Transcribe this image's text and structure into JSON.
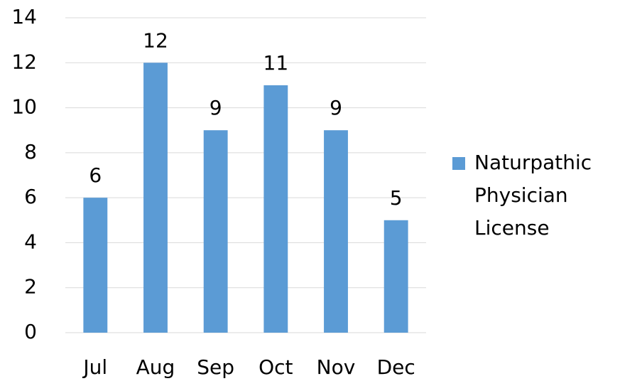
{
  "chart_data": {
    "type": "bar",
    "categories": [
      "Jul",
      "Aug",
      "Sep",
      "Oct",
      "Nov",
      "Dec"
    ],
    "series": [
      {
        "name": "Naturpathic Physician License",
        "color": "#5b9bd5",
        "values": [
          6,
          12,
          9,
          11,
          9,
          5
        ]
      }
    ],
    "ylim": [
      0,
      14
    ],
    "yticks": [
      0,
      2,
      4,
      6,
      8,
      10,
      12,
      14
    ],
    "grid": true,
    "legend": "right"
  }
}
